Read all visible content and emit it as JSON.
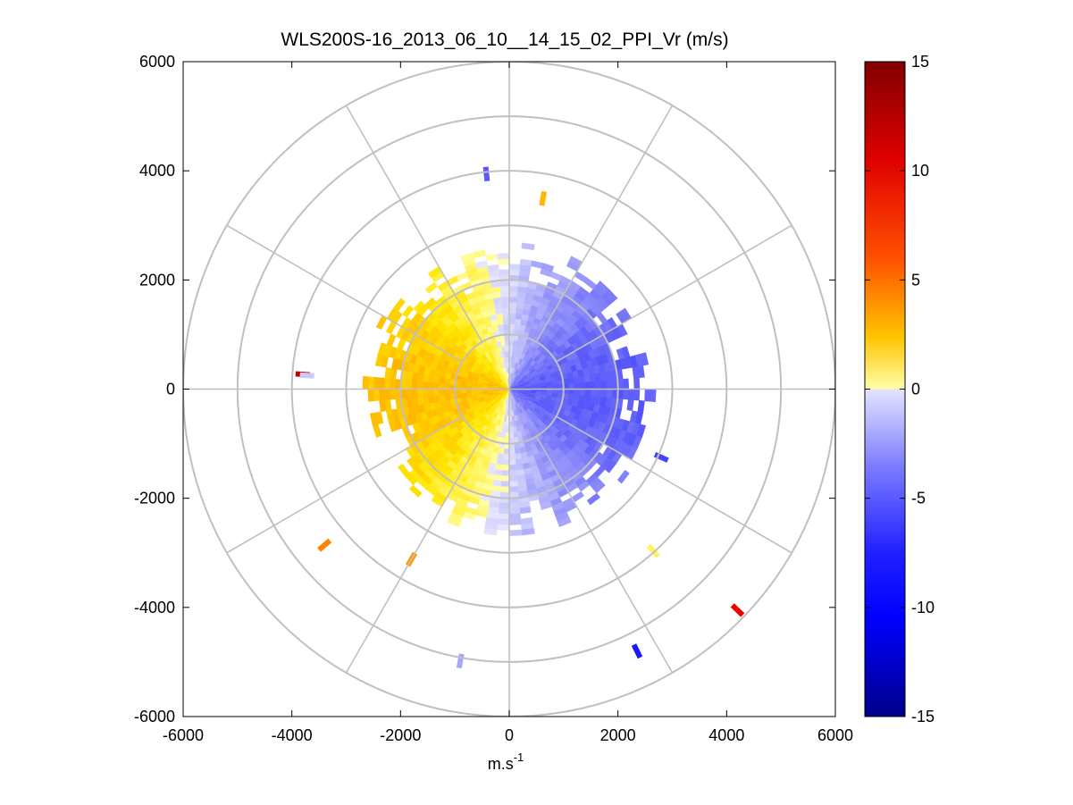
{
  "chart_data": {
    "type": "heatmap",
    "subtype": "polar-ppi",
    "title": "WLS200S-16_2013_06_10__14_15_02_PPI_Vr (m/s)",
    "xlabel": "m.s",
    "xlabel_superscript": "-1",
    "ylabel": "",
    "xlim": [
      -6000,
      6000
    ],
    "ylim": [
      -6000,
      6000
    ],
    "xticks": [
      -6000,
      -4000,
      -2000,
      0,
      2000,
      4000,
      6000
    ],
    "yticks": [
      -6000,
      -4000,
      -2000,
      0,
      2000,
      4000,
      6000
    ],
    "xtick_labels": [
      "-6000",
      "-4000",
      "-2000",
      "0",
      "2000",
      "4000",
      "6000"
    ],
    "ytick_labels": [
      "-6000",
      "-4000",
      "-2000",
      "0",
      "2000",
      "4000",
      "6000"
    ],
    "polar_grid": {
      "ring_radii": [
        1000,
        2000,
        3000,
        4000,
        5000,
        6000
      ],
      "spoke_angles_deg": [
        0,
        30,
        60,
        90,
        120,
        150,
        180,
        210,
        240,
        270,
        300,
        330
      ]
    },
    "colorbar": {
      "min": -15,
      "max": 15,
      "ticks": [
        15,
        10,
        5,
        0,
        -5,
        -10,
        -15
      ],
      "tick_labels": [
        "15",
        "10",
        "5",
        "0",
        "-5",
        "-10",
        "-15"
      ],
      "negative_colors": [
        "#00008f",
        "#0000ff",
        "#5a5aff",
        "#dcdcff"
      ],
      "positive_colors": [
        "#ffff9b",
        "#ffd000",
        "#ff8c00",
        "#ff0000",
        "#800000"
      ]
    },
    "data_region": {
      "center": [
        0,
        0
      ],
      "dense_radius_max": 2500,
      "approaching_side": "east (negative Vr, blue)",
      "receding_side": "west (positive Vr, yellow-orange)"
    },
    "scattered_echoes": [
      {
        "x": -3800,
        "y": 270,
        "vr": 12
      },
      {
        "x": -3720,
        "y": 250,
        "vr": -1
      },
      {
        "x": 4200,
        "y": -4050,
        "vr": 10
      },
      {
        "x": 2350,
        "y": -4800,
        "vr": -8
      },
      {
        "x": -900,
        "y": -4980,
        "vr": -2
      },
      {
        "x": -420,
        "y": 3940,
        "vr": -5
      },
      {
        "x": 620,
        "y": 3490,
        "vr": 4
      },
      {
        "x": -3400,
        "y": -2860,
        "vr": 6
      },
      {
        "x": 2650,
        "y": -2970,
        "vr": 1
      },
      {
        "x": 2800,
        "y": -1250,
        "vr": -6
      },
      {
        "x": -1800,
        "y": -3120,
        "vr": 5
      }
    ]
  }
}
